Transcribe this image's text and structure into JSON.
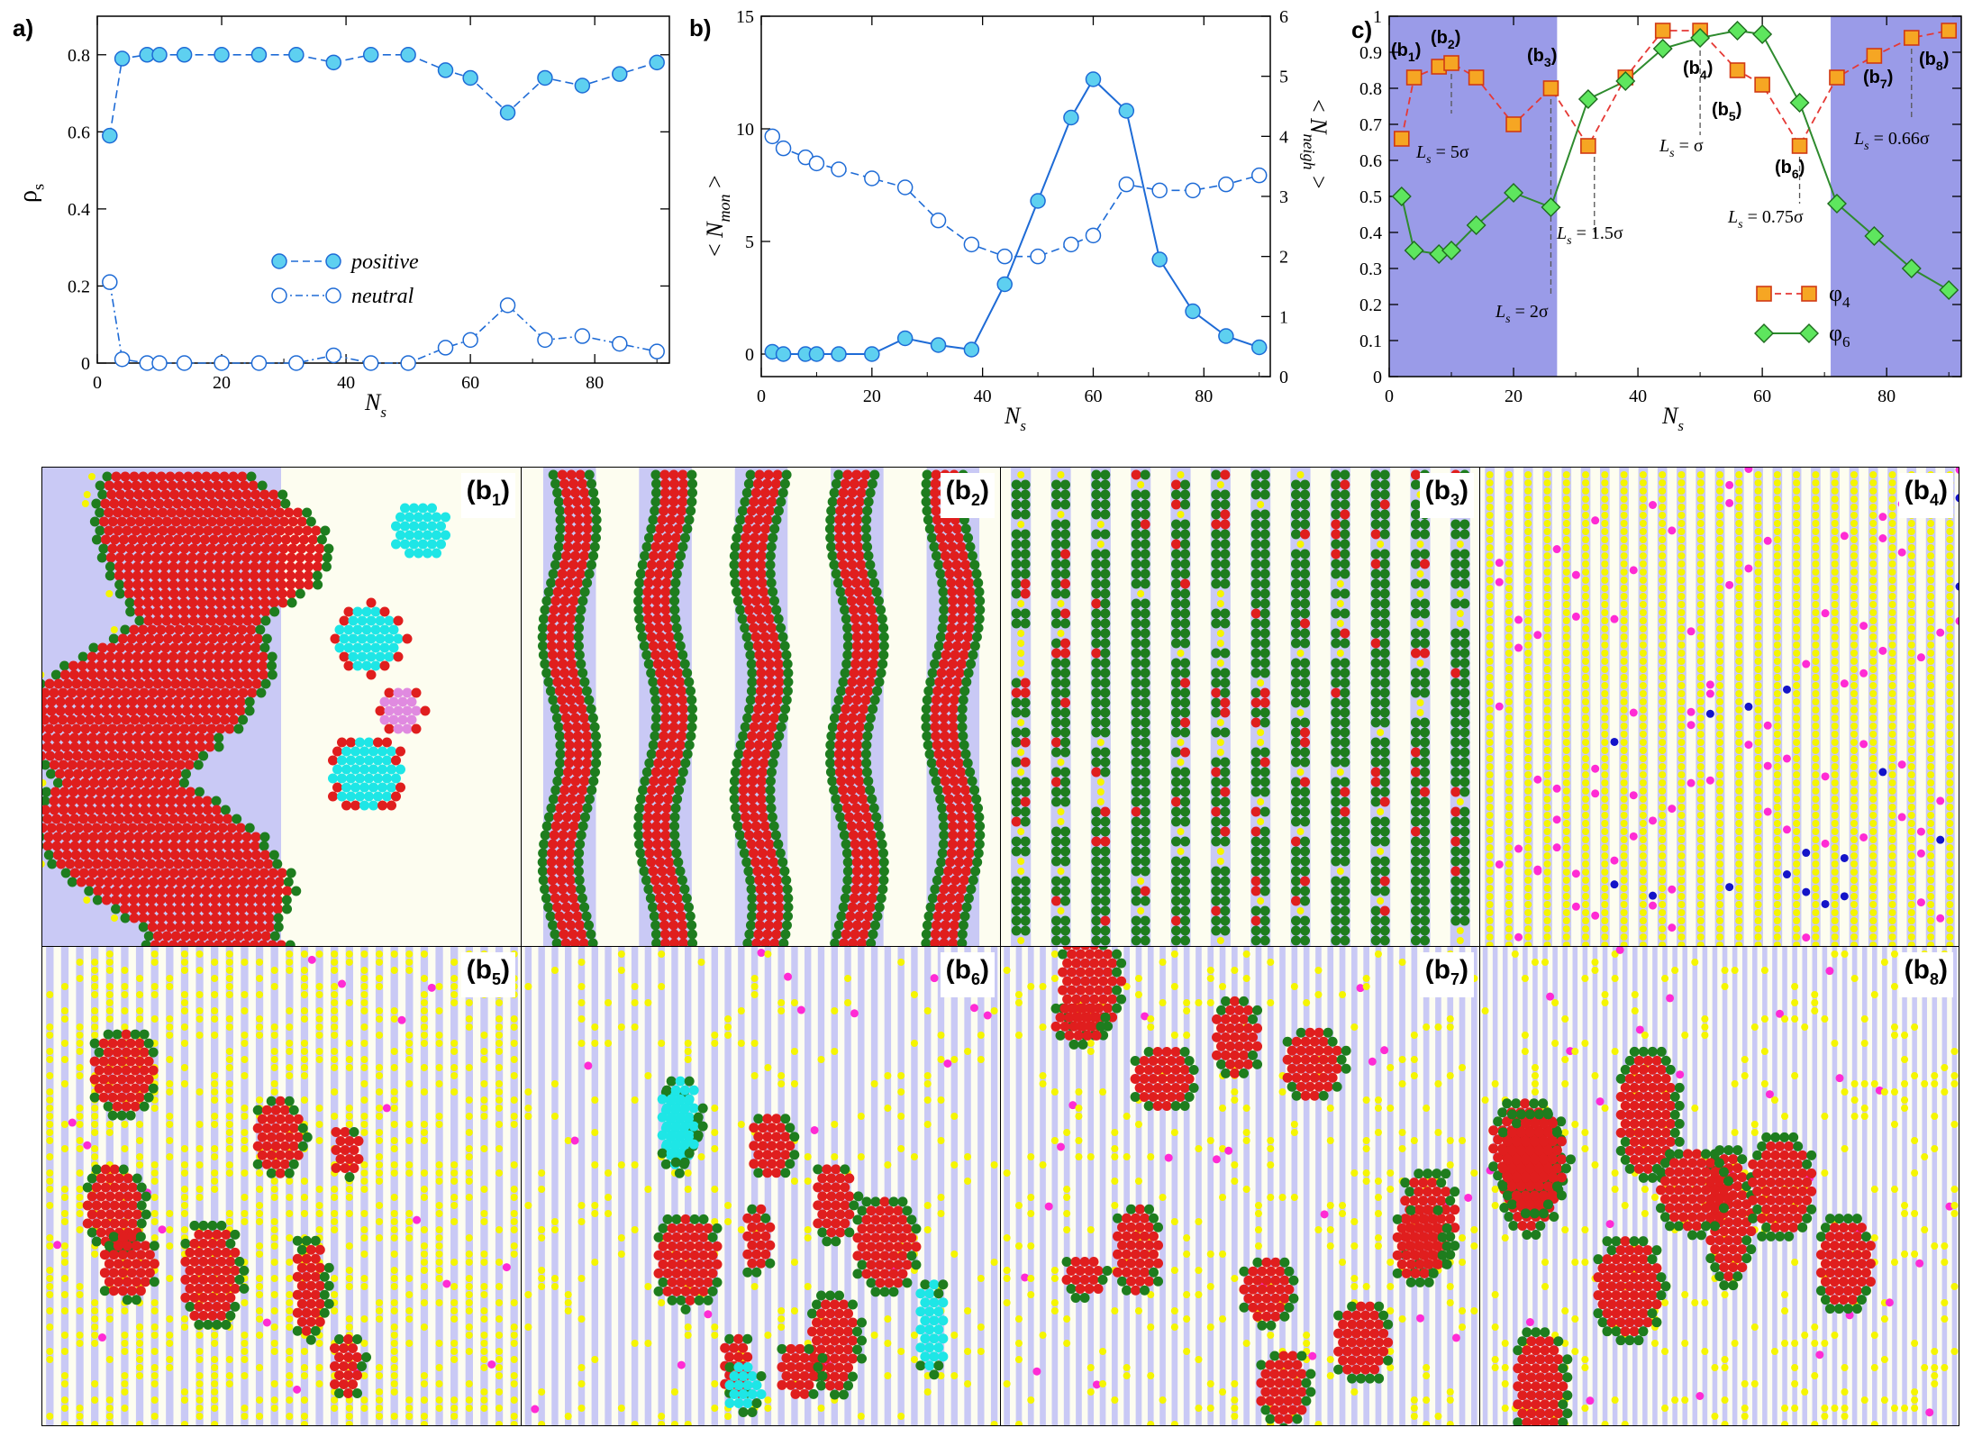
{
  "chart_data": [
    {
      "panel": "a)",
      "type": "line",
      "xlabel": "N_s",
      "ylabel": "ρ_s",
      "xlim": [
        0,
        92
      ],
      "ylim": [
        0,
        0.9
      ],
      "xticks": [
        0,
        20,
        40,
        60,
        80
      ],
      "yticks": [
        0,
        0.2,
        0.4,
        0.6,
        0.8
      ],
      "x": [
        2,
        4,
        8,
        10,
        14,
        20,
        26,
        32,
        38,
        44,
        50,
        56,
        60,
        66,
        72,
        78,
        84,
        90
      ],
      "series": [
        {
          "name": "positive",
          "marker": "filled-circle",
          "line": "dashed",
          "values": [
            0.59,
            0.79,
            0.8,
            0.8,
            0.8,
            0.8,
            0.8,
            0.8,
            0.78,
            0.8,
            0.8,
            0.76,
            0.74,
            0.65,
            0.74,
            0.72,
            0.75,
            0.78
          ]
        },
        {
          "name": "neutral",
          "marker": "open-circle",
          "line": "dash-dot",
          "values": [
            0.21,
            0.01,
            0.0,
            0.0,
            0.0,
            0.0,
            0.0,
            0.0,
            0.02,
            0.0,
            0.0,
            0.04,
            0.06,
            0.15,
            0.06,
            0.07,
            0.05,
            0.03
          ]
        }
      ],
      "legend": "bottom-center"
    },
    {
      "panel": "b)",
      "type": "line",
      "xlabel": "N_s",
      "ylabel": "< N_mon >",
      "ylabel_right": "< N_neigh >",
      "xlim": [
        0,
        92
      ],
      "ylim": [
        -1,
        15
      ],
      "ylim_right": [
        0,
        6
      ],
      "xticks": [
        0,
        20,
        40,
        60,
        80
      ],
      "yticks": [
        0,
        5,
        10,
        15
      ],
      "yticks_right": [
        0,
        1,
        2,
        3,
        4,
        5,
        6
      ],
      "series": [
        {
          "name": "< N_mon >",
          "axis": "left",
          "marker": "filled-circle",
          "line": "solid",
          "x": [
            2,
            4,
            8,
            10,
            14,
            20,
            26,
            32,
            38,
            44,
            50,
            56,
            60,
            66,
            72,
            78,
            84,
            90
          ],
          "values": [
            0.1,
            0.0,
            0.0,
            0.0,
            0.0,
            0.0,
            0.7,
            0.4,
            0.2,
            3.1,
            6.8,
            10.5,
            12.2,
            10.8,
            4.2,
            1.9,
            0.8,
            0.3
          ]
        },
        {
          "name": "< N_neigh >",
          "axis": "right",
          "marker": "open-circle",
          "line": "dashed",
          "x": [
            2,
            4,
            8,
            10,
            14,
            20,
            26,
            32,
            38,
            44,
            50,
            56,
            60,
            66,
            72,
            78,
            84,
            90
          ],
          "values": [
            4.0,
            3.8,
            3.65,
            3.55,
            3.45,
            3.3,
            3.15,
            2.6,
            2.2,
            2.0,
            2.0,
            2.2,
            2.35,
            3.2,
            3.1,
            3.1,
            3.2,
            3.35
          ]
        }
      ]
    },
    {
      "panel": "c)",
      "type": "line",
      "xlabel": "N_s",
      "xlim": [
        0,
        92
      ],
      "ylim": [
        0,
        1
      ],
      "xticks": [
        0,
        20,
        40,
        60,
        80
      ],
      "yticks": [
        0,
        0.1,
        0.2,
        0.3,
        0.4,
        0.5,
        0.6,
        0.7,
        0.8,
        0.9,
        1
      ],
      "shaded_x_ranges": [
        [
          0,
          27
        ],
        [
          71,
          92
        ]
      ],
      "shade_color": "#9a9be8",
      "x": [
        2,
        4,
        8,
        10,
        14,
        20,
        26,
        32,
        38,
        44,
        50,
        56,
        60,
        66,
        72,
        78,
        84,
        90
      ],
      "series": [
        {
          "name": "φ4",
          "color": "#e53935",
          "marker": "orange-square",
          "line": "dashed",
          "values": [
            0.66,
            0.83,
            0.86,
            0.87,
            0.83,
            0.7,
            0.8,
            0.64,
            0.83,
            0.96,
            0.96,
            0.85,
            0.81,
            0.64,
            0.83,
            0.89,
            0.94,
            0.96
          ]
        },
        {
          "name": "φ6",
          "color": "#2e8b2e",
          "marker": "green-diamond",
          "line": "solid",
          "values": [
            0.5,
            0.35,
            0.34,
            0.35,
            0.42,
            0.51,
            0.47,
            0.77,
            0.82,
            0.91,
            0.94,
            0.96,
            0.95,
            0.76,
            0.48,
            0.39,
            0.3,
            0.24
          ]
        }
      ],
      "annotations": [
        {
          "text": "(b1)",
          "x": 2
        },
        {
          "text": "(b2)",
          "x": 10
        },
        {
          "text": "(b3)",
          "x": 26
        },
        {
          "text": "(b4)",
          "x": 50
        },
        {
          "text": "(b5)",
          "x": 60
        },
        {
          "text": "(b6)",
          "x": 66
        },
        {
          "text": "(b7)",
          "x": 78
        },
        {
          "text": "(b8)",
          "x": 90
        }
      ],
      "spacing_labels": [
        {
          "text": "L_s = 5σ",
          "x": 10
        },
        {
          "text": "L_s = 2σ",
          "x": 26
        },
        {
          "text": "L_s = 1.5σ",
          "x": 33
        },
        {
          "text": "L_s = σ",
          "x": 50
        },
        {
          "text": "L_s = 0.75σ",
          "x": 66
        },
        {
          "text": "L_s = 0.66σ",
          "x": 84
        }
      ],
      "legend": "bottom-right"
    }
  ],
  "snapshots": [
    {
      "label": "b",
      "sub": "1",
      "stripes": 1,
      "mode": "b1"
    },
    {
      "label": "b",
      "sub": "2",
      "stripes": 5,
      "mode": "ribbons"
    },
    {
      "label": "b",
      "sub": "3",
      "stripes": 12,
      "mode": "chains"
    },
    {
      "label": "b",
      "sub": "4",
      "stripes": 25,
      "mode": "yellow"
    },
    {
      "label": "b",
      "sub": "5",
      "stripes": 32,
      "mode": "sparse"
    },
    {
      "label": "b",
      "sub": "6",
      "stripes": 36,
      "mode": "clusters"
    },
    {
      "label": "b",
      "sub": "7",
      "stripes": 40,
      "mode": "clusters2"
    },
    {
      "label": "b",
      "sub": "8",
      "stripes": 48,
      "mode": "red"
    }
  ],
  "colors": {
    "axis": "#000000",
    "blue_marker": "#1e6bd6",
    "blue_fill": "#5ed0f0",
    "stripe": "#c9c9f5",
    "cream": "#fdfdf0",
    "red": "#e01e1e",
    "green": "#1e7d1e",
    "yellow": "#f5f500",
    "magenta": "#ff2bd4",
    "cyan": "#1ee6e6",
    "pink": "#e08ae0",
    "dblue": "#1414c8"
  }
}
